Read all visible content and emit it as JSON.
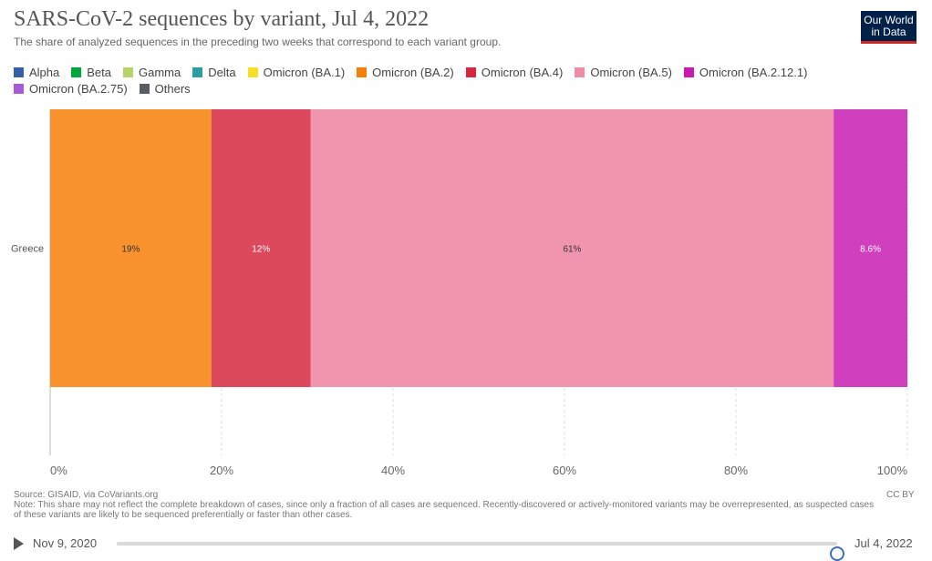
{
  "title": "SARS-CoV-2 sequences by variant, Jul 4, 2022",
  "subtitle": "The share of analyzed sequences in the preceding two weeks that correspond to each variant group.",
  "logo": {
    "line1": "Our World",
    "line2": "in Data"
  },
  "legend": [
    {
      "name": "Alpha",
      "color": "#3360a9"
    },
    {
      "name": "Beta",
      "color": "#00a83c"
    },
    {
      "name": "Gamma",
      "color": "#b5d56a"
    },
    {
      "name": "Delta",
      "color": "#2c9da3"
    },
    {
      "name": "Omicron (BA.1)",
      "color": "#f8df27"
    },
    {
      "name": "Omicron (BA.2)",
      "color": "#f57f0c"
    },
    {
      "name": "Omicron (BA.4)",
      "color": "#d9263f"
    },
    {
      "name": "Omicron (BA.5)",
      "color": "#f18ca6"
    },
    {
      "name": "Omicron (BA.2.12.1)",
      "color": "#cb1ab1"
    },
    {
      "name": "Omicron (BA.2.75)",
      "color": "#a85ad6"
    },
    {
      "name": "Others",
      "color": "#595c62"
    }
  ],
  "chart_data": {
    "type": "bar",
    "orientation": "horizontal",
    "stacked": true,
    "categories": [
      "Greece"
    ],
    "series": [
      {
        "name": "Omicron (BA.2)",
        "values": [
          18.8
        ],
        "label": "19%",
        "color": "#f7922c",
        "label_color": "#333333"
      },
      {
        "name": "Omicron (BA.4)",
        "values": [
          11.6
        ],
        "label": "12%",
        "color": "#dc485c",
        "label_color": "#ffffff"
      },
      {
        "name": "Omicron (BA.5)",
        "values": [
          61.0
        ],
        "label": "61%",
        "color": "#f195ae",
        "label_color": "#333333"
      },
      {
        "name": "Omicron (BA.2.12.1)",
        "values": [
          8.6
        ],
        "label": "8.6%",
        "color": "#d03fbe",
        "label_color": "#ffffff"
      }
    ],
    "xlim": [
      0,
      100
    ],
    "xticks": [
      0,
      20,
      40,
      60,
      80,
      100
    ],
    "xtick_labels": [
      "0%",
      "20%",
      "40%",
      "60%",
      "80%",
      "100%"
    ],
    "grid": true,
    "legend_position": "top"
  },
  "footer": {
    "source": "Source: GISAID, via CoVariants.org",
    "note": "Note: This share may not reflect the complete breakdown of cases, since only a fraction of all cases are sequenced. Recently-discovered or actively-monitored variants may be overrepresented, as suspected cases of these variants are likely to be sequenced preferentially or faster than other cases.",
    "license": "CC BY"
  },
  "timeline": {
    "start": "Nov 9, 2020",
    "end": "Jul 4, 2022",
    "position": 1.0
  }
}
